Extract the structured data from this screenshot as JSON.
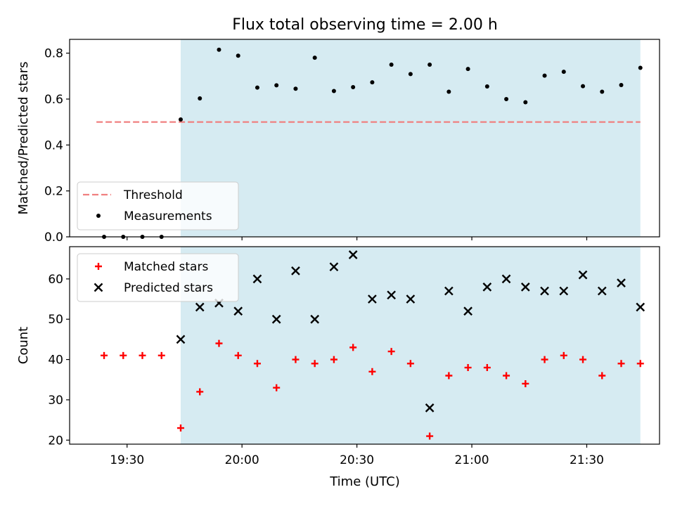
{
  "figure": {
    "title": "Flux total observing time = 2.00 h",
    "xlabel": "Time (UTC)"
  },
  "colors": {
    "observing_window": "#add8e6",
    "threshold": "#f08080",
    "measurements": "#000000",
    "matched": "#ff0000",
    "predicted": "#000000"
  },
  "chart_data": [
    {
      "type": "scatter",
      "panel": "top",
      "ylabel": "Matched/Predicted stars",
      "xlim": [
        "19:15",
        "21:49"
      ],
      "ylim": [
        0,
        0.86
      ],
      "xticks": [
        "19:30",
        "20:00",
        "20:30",
        "21:00",
        "21:30"
      ],
      "yticks": [
        "0.0",
        "0.2",
        "0.4",
        "0.6",
        "0.8"
      ],
      "shaded_span": [
        "19:44",
        "21:44"
      ],
      "legend_position": "lower-left",
      "series": [
        {
          "name": "Threshold",
          "style": "dashed-line",
          "x": [
            "19:22",
            "21:44"
          ],
          "y": [
            0.5,
            0.5
          ]
        },
        {
          "name": "Measurements",
          "style": "dot",
          "x": [
            "19:24",
            "19:29",
            "19:34",
            "19:39",
            "19:44",
            "19:49",
            "19:54",
            "19:59",
            "20:04",
            "20:09",
            "20:14",
            "20:19",
            "20:24",
            "20:29",
            "20:34",
            "20:39",
            "20:44",
            "20:49",
            "20:54",
            "20:59",
            "21:04",
            "21:09",
            "21:14",
            "21:19",
            "21:24",
            "21:29",
            "21:34",
            "21:39",
            "21:44"
          ],
          "y": [
            0.0,
            0.0,
            0.0,
            0.0,
            0.511,
            0.603,
            0.815,
            0.789,
            0.65,
            0.66,
            0.645,
            0.78,
            0.635,
            0.652,
            0.673,
            0.75,
            0.709,
            0.75,
            0.632,
            0.731,
            0.655,
            0.6,
            0.586,
            0.702,
            0.719,
            0.656,
            0.632,
            0.661,
            0.736
          ]
        }
      ]
    },
    {
      "type": "scatter",
      "panel": "bottom",
      "ylabel": "Count",
      "xlim": [
        "19:15",
        "21:49"
      ],
      "ylim": [
        19,
        68
      ],
      "xticks": [
        "19:30",
        "20:00",
        "20:30",
        "21:00",
        "21:30"
      ],
      "yticks": [
        "20",
        "30",
        "40",
        "50",
        "60"
      ],
      "shaded_span": [
        "19:44",
        "21:44"
      ],
      "legend_position": "upper-left",
      "series": [
        {
          "name": "Matched stars",
          "style": "plus",
          "x": [
            "19:24",
            "19:29",
            "19:34",
            "19:39",
            "19:44",
            "19:49",
            "19:54",
            "19:59",
            "20:04",
            "20:09",
            "20:14",
            "20:19",
            "20:24",
            "20:29",
            "20:34",
            "20:39",
            "20:44",
            "20:49",
            "20:54",
            "20:59",
            "21:04",
            "21:09",
            "21:14",
            "21:19",
            "21:24",
            "21:29",
            "21:34",
            "21:39",
            "21:44"
          ],
          "y": [
            41,
            41,
            41,
            41,
            23,
            32,
            44,
            41,
            39,
            33,
            40,
            39,
            40,
            43,
            37,
            42,
            39,
            21,
            36,
            38,
            38,
            36,
            34,
            40,
            41,
            40,
            36,
            39,
            39
          ]
        },
        {
          "name": "Predicted stars",
          "style": "cross",
          "x": [
            "19:44",
            "19:49",
            "19:54",
            "19:59",
            "20:04",
            "20:09",
            "20:14",
            "20:19",
            "20:24",
            "20:29",
            "20:34",
            "20:39",
            "20:44",
            "20:49",
            "20:54",
            "20:59",
            "21:04",
            "21:09",
            "21:14",
            "21:19",
            "21:24",
            "21:29",
            "21:34",
            "21:39",
            "21:44"
          ],
          "y": [
            45,
            53,
            54,
            52,
            60,
            50,
            62,
            50,
            63,
            66,
            55,
            56,
            55,
            28,
            57,
            52,
            58,
            60,
            58,
            57,
            57,
            61,
            57,
            59,
            53
          ]
        }
      ]
    }
  ]
}
